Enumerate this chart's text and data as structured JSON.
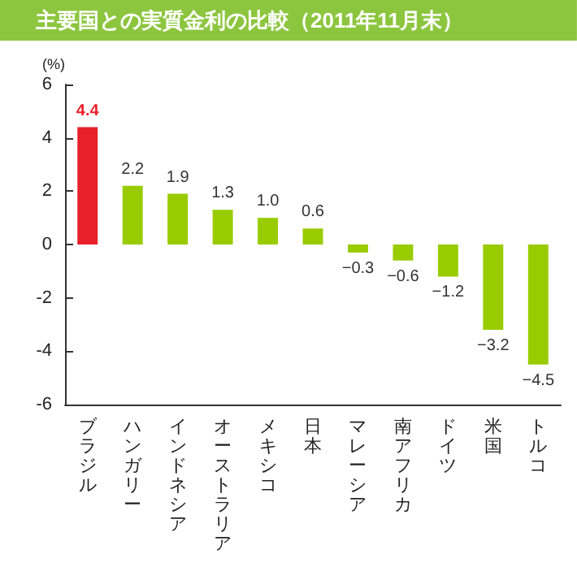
{
  "chart_data": {
    "type": "bar",
    "title": "主要国との実質金利の比較（2011年11月末）",
    "ylabel": "(%)",
    "categories": [
      "ブラジル",
      "ハンガリー",
      "インドネシア",
      "オーストラリア",
      "メキシコ",
      "日本",
      "マレーシア",
      "南アフリカ",
      "ドイツ",
      "米国",
      "トルコ"
    ],
    "values": [
      4.4,
      2.2,
      1.9,
      1.3,
      1.0,
      0.6,
      -0.3,
      -0.6,
      -1.2,
      -3.2,
      -4.5
    ],
    "colors": [
      "#e8202a",
      "#99cc00",
      "#99cc00",
      "#99cc00",
      "#99cc00",
      "#99cc00",
      "#99cc00",
      "#99cc00",
      "#99cc00",
      "#99cc00",
      "#99cc00"
    ],
    "value_labels": [
      "4.4",
      "2.2",
      "1.9",
      "1.3",
      "1.0",
      "0.6",
      "−0.3",
      "−0.6",
      "−1.2",
      "−3.2",
      "−4.5"
    ],
    "ylim": [
      -6,
      6
    ],
    "yticks": [
      -6,
      -4,
      -2,
      0,
      2,
      4,
      6
    ]
  }
}
